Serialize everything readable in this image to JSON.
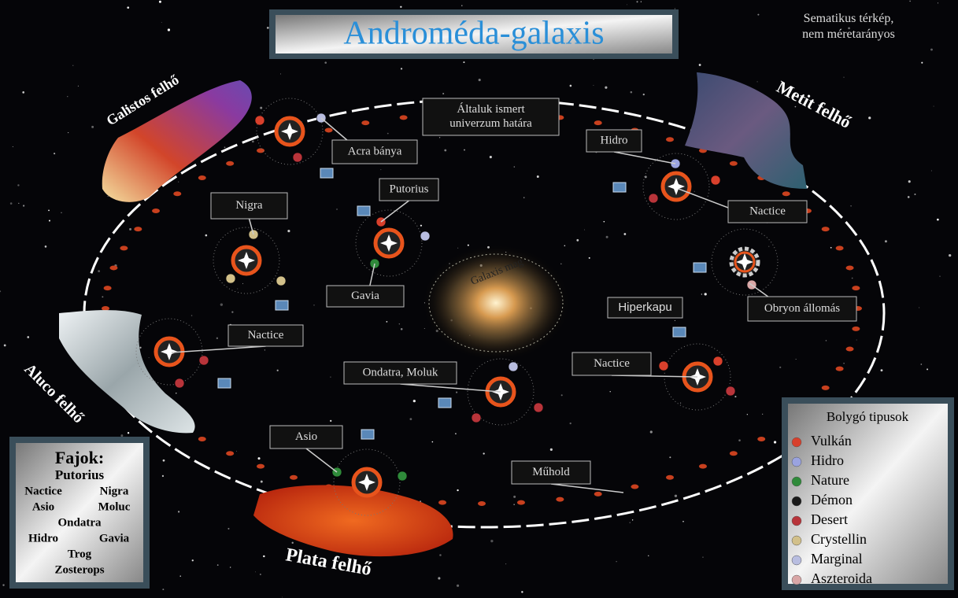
{
  "header": {
    "title": "Androméda-galaxis",
    "note": [
      "Sematikus térkép,",
      "nem méretarányos"
    ]
  },
  "clouds": [
    {
      "label": "Galistos felhő"
    },
    {
      "label": "Metit felhő"
    },
    {
      "label": "Aluco felhő"
    },
    {
      "label": "Plata felhő"
    }
  ],
  "core_label": "Galaxis mag",
  "callouts": [
    {
      "label": [
        "Általuk ismert",
        "univerzum határa"
      ]
    },
    {
      "label": [
        "Acra bánya"
      ]
    },
    {
      "label": [
        "Hidro"
      ]
    },
    {
      "label": [
        "Nactice"
      ]
    },
    {
      "label": [
        "Putorius"
      ]
    },
    {
      "label": [
        "Nigra"
      ]
    },
    {
      "label": [
        "Gavia"
      ]
    },
    {
      "label": [
        "Hiperkapu"
      ]
    },
    {
      "label": [
        "Obryon állomás"
      ]
    },
    {
      "label": [
        "Nactice"
      ]
    },
    {
      "label": [
        "Ondatra, Moluk"
      ]
    },
    {
      "label": [
        "Nactice"
      ]
    },
    {
      "label": [
        "Asio"
      ]
    },
    {
      "label": [
        "Műhold"
      ]
    }
  ],
  "species": {
    "title": "Fajok:",
    "rows": [
      [
        "Putorius"
      ],
      [
        "Nactice",
        "Nigra"
      ],
      [
        "Asio",
        "Moluc"
      ],
      [
        "Ondatra"
      ],
      [
        "Hidro",
        "Gavia"
      ],
      [
        "Trog"
      ],
      [
        "Zosterops"
      ]
    ]
  },
  "planet_types": {
    "title": "Bolygó tipusok",
    "items": [
      {
        "label": "Vulkán",
        "color": "#d8402c"
      },
      {
        "label": "Hidro",
        "color": "#9aa3e0"
      },
      {
        "label": "Nature",
        "color": "#2f8a3a"
      },
      {
        "label": "Démon",
        "color": "#1a1a1a"
      },
      {
        "label": "Desert",
        "color": "#b8343a"
      },
      {
        "label": "Crystellin",
        "color": "#d2c08a"
      },
      {
        "label": "Marginal",
        "color": "#b8bde0"
      },
      {
        "label": "Aszteroida",
        "color": "#d9a6a6"
      }
    ]
  }
}
